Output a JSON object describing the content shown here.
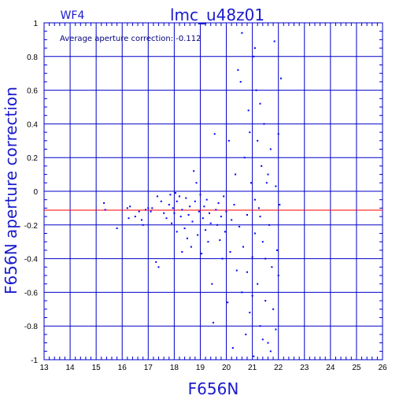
{
  "header": {
    "title": "lmc_u48z01",
    "panel_label": "WF4"
  },
  "annotation": "Average aperture correction: -0.112",
  "colors": {
    "axes": "#0000c8",
    "grid": "#0000c8",
    "points": "#0000ff",
    "reference_line": "#ff0000",
    "label_text": "#1a1acd"
  },
  "chart_data": {
    "type": "scatter",
    "title": "lmc_u48z01",
    "xlabel": "F656N",
    "ylabel": "F656N aperture correction",
    "xlim": [
      13,
      26
    ],
    "ylim": [
      -1,
      1
    ],
    "grid": true,
    "xticks": [
      13,
      14,
      15,
      16,
      17,
      18,
      19,
      20,
      21,
      22,
      23,
      24,
      25,
      26
    ],
    "yticks": [
      -1,
      -0.8,
      -0.6,
      -0.4,
      -0.2,
      0,
      0.2,
      0.4,
      0.6,
      0.8,
      1
    ],
    "xtick_labels": [
      "13",
      "14",
      "15",
      "16",
      "17",
      "18",
      "19",
      "20",
      "21",
      "22",
      "23",
      "24",
      "25",
      "26"
    ],
    "ytick_labels": [
      "-1",
      "-0.8",
      "-0.6",
      "-0.4",
      "-0.2",
      "0",
      "0.2",
      "0.4",
      "0.6",
      "0.8",
      "1"
    ],
    "reference_line": {
      "y": -0.112
    },
    "points": [
      [
        15.3,
        -0.07
      ],
      [
        15.35,
        -0.11
      ],
      [
        15.8,
        -0.22
      ],
      [
        16.2,
        -0.1
      ],
      [
        16.25,
        -0.16
      ],
      [
        16.3,
        -0.09
      ],
      [
        16.5,
        -0.15
      ],
      [
        16.65,
        -0.12
      ],
      [
        16.75,
        -0.17
      ],
      [
        16.8,
        -0.2
      ],
      [
        16.9,
        -0.11
      ],
      [
        17.0,
        -0.1
      ],
      [
        17.1,
        -0.12
      ],
      [
        17.15,
        -0.1
      ],
      [
        17.3,
        -0.42
      ],
      [
        17.4,
        -0.45
      ],
      [
        17.35,
        -0.03
      ],
      [
        17.5,
        -0.06
      ],
      [
        17.6,
        -0.13
      ],
      [
        17.7,
        -0.16
      ],
      [
        17.8,
        -0.08
      ],
      [
        17.85,
        -0.02
      ],
      [
        17.9,
        -0.19
      ],
      [
        17.95,
        -0.1
      ],
      [
        18.0,
        -0.13
      ],
      [
        18.05,
        -0.01
      ],
      [
        18.1,
        -0.24
      ],
      [
        18.1,
        -0.06
      ],
      [
        18.2,
        -0.03
      ],
      [
        18.25,
        -0.15
      ],
      [
        18.3,
        -0.36
      ],
      [
        18.3,
        -0.11
      ],
      [
        18.4,
        -0.22
      ],
      [
        18.45,
        -0.04
      ],
      [
        18.5,
        -0.28
      ],
      [
        18.55,
        -0.14
      ],
      [
        18.6,
        -0.09
      ],
      [
        18.65,
        -0.33
      ],
      [
        18.7,
        -0.18
      ],
      [
        18.75,
        0.12
      ],
      [
        18.8,
        -0.06
      ],
      [
        18.85,
        0.05
      ],
      [
        18.9,
        -0.26
      ],
      [
        18.95,
        -0.12
      ],
      [
        19.0,
        -0.02
      ],
      [
        19.05,
        -0.37
      ],
      [
        19.1,
        -0.16
      ],
      [
        19.15,
        -0.09
      ],
      [
        19.2,
        -0.23
      ],
      [
        19.25,
        -0.05
      ],
      [
        19.3,
        -0.3
      ],
      [
        19.35,
        -0.13
      ],
      [
        19.4,
        -0.19
      ],
      [
        19.45,
        -0.55
      ],
      [
        19.5,
        -0.78
      ],
      [
        19.55,
        0.34
      ],
      [
        19.6,
        -0.11
      ],
      [
        19.65,
        -0.2
      ],
      [
        19.7,
        -0.07
      ],
      [
        19.75,
        -0.29
      ],
      [
        19.8,
        -0.15
      ],
      [
        19.85,
        -0.4
      ],
      [
        19.9,
        -0.03
      ],
      [
        19.95,
        -0.24
      ],
      [
        20.0,
        -0.12
      ],
      [
        20.05,
        -0.66
      ],
      [
        20.1,
        0.3
      ],
      [
        20.15,
        -0.36
      ],
      [
        20.2,
        -0.17
      ],
      [
        20.25,
        -0.93
      ],
      [
        20.3,
        -0.08
      ],
      [
        20.35,
        0.1
      ],
      [
        20.4,
        -0.47
      ],
      [
        20.45,
        0.72
      ],
      [
        20.5,
        -0.21
      ],
      [
        20.55,
        0.65
      ],
      [
        20.6,
        -0.6
      ],
      [
        20.6,
        0.94
      ],
      [
        20.65,
        -0.33
      ],
      [
        20.7,
        0.2
      ],
      [
        20.75,
        -0.85
      ],
      [
        20.8,
        -0.14
      ],
      [
        20.85,
        0.48
      ],
      [
        20.9,
        -0.72
      ],
      [
        20.95,
        0.05
      ],
      [
        21.0,
        -0.39
      ],
      [
        21.05,
        0.8
      ],
      [
        21.05,
        -0.98
      ],
      [
        21.1,
        -0.25
      ],
      [
        21.1,
        0.85
      ],
      [
        21.15,
        0.6
      ],
      [
        21.2,
        -0.55
      ],
      [
        21.2,
        0.3
      ],
      [
        21.25,
        -0.1
      ],
      [
        21.3,
        0.52
      ],
      [
        21.3,
        -0.8
      ],
      [
        21.35,
        0.15
      ],
      [
        21.4,
        -0.3
      ],
      [
        21.45,
        0.4
      ],
      [
        21.5,
        -0.65
      ],
      [
        21.55,
        0.05
      ],
      [
        21.6,
        -0.9
      ],
      [
        21.65,
        -0.2
      ],
      [
        21.7,
        0.25
      ],
      [
        21.75,
        -0.45
      ],
      [
        21.8,
        -0.7
      ],
      [
        21.85,
        0.89
      ],
      [
        21.9,
        0.03
      ],
      [
        21.95,
        -0.35
      ],
      [
        22.0,
        0.34
      ],
      [
        22.05,
        -0.08
      ],
      [
        22.1,
        0.67
      ],
      [
        22.0,
        -0.5
      ],
      [
        21.9,
        -0.82
      ],
      [
        21.7,
        -0.95
      ],
      [
        21.4,
        -0.88
      ],
      [
        21.0,
        -0.62
      ],
      [
        20.8,
        -0.48
      ],
      [
        21.3,
        -0.15
      ],
      [
        21.6,
        0.1
      ],
      [
        20.9,
        0.35
      ],
      [
        21.1,
        -0.05
      ],
      [
        21.5,
        -0.4
      ]
    ]
  }
}
